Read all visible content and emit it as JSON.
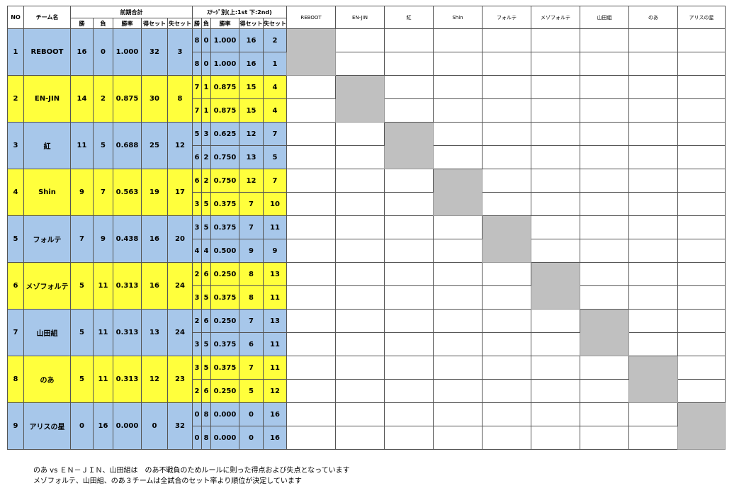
{
  "headers": {
    "no": "NO",
    "team": "チーム名",
    "total": "前期合計",
    "stage": "ｽﾃｰｼﾞ別(上:1st 下:2nd)",
    "win": "勝",
    "loss": "負",
    "rate": "勝率",
    "sets_won": "得セット",
    "sets_lost": "失セット"
  },
  "teams": [
    "REBOOT",
    "EN-JIN",
    "紅",
    "Shin",
    "フォルテ",
    "メゾフォルテ",
    "山田組",
    "のあ",
    "アリスの星"
  ],
  "colors": {
    "blue_row": "#a7c7ea",
    "yellow_row": "#ffff3c",
    "self_block": "#c0c0c0",
    "win_cell": "#d7f0d2",
    "loss_cell": "#f7c9c9"
  },
  "rows": [
    {
      "no": "1",
      "team": "REBOOT",
      "win": "16",
      "loss": "0",
      "rate": "1.000",
      "sw": "32",
      "sl": "3",
      "color": "blue",
      "s1": {
        "w": "8",
        "l": "0",
        "r": "1.000",
        "sw": "16",
        "sl": "2"
      },
      "s2": {
        "w": "8",
        "l": "0",
        "r": "1.000",
        "sw": "16",
        "sl": "1"
      }
    },
    {
      "no": "2",
      "team": "EN-JIN",
      "win": "14",
      "loss": "2",
      "rate": "0.875",
      "sw": "30",
      "sl": "8",
      "color": "yellow",
      "s1": {
        "w": "7",
        "l": "1",
        "r": "0.875",
        "sw": "15",
        "sl": "4"
      },
      "s2": {
        "w": "7",
        "l": "1",
        "r": "0.875",
        "sw": "15",
        "sl": "4"
      }
    },
    {
      "no": "3",
      "team": "紅",
      "win": "11",
      "loss": "5",
      "rate": "0.688",
      "sw": "25",
      "sl": "12",
      "color": "blue",
      "s1": {
        "w": "5",
        "l": "3",
        "r": "0.625",
        "sw": "12",
        "sl": "7"
      },
      "s2": {
        "w": "6",
        "l": "2",
        "r": "0.750",
        "sw": "13",
        "sl": "5"
      }
    },
    {
      "no": "4",
      "team": "Shin",
      "win": "9",
      "loss": "7",
      "rate": "0.563",
      "sw": "19",
      "sl": "17",
      "color": "yellow",
      "s1": {
        "w": "6",
        "l": "2",
        "r": "0.750",
        "sw": "12",
        "sl": "7"
      },
      "s2": {
        "w": "3",
        "l": "5",
        "r": "0.375",
        "sw": "7",
        "sl": "10"
      }
    },
    {
      "no": "5",
      "team": "フォルテ",
      "win": "7",
      "loss": "9",
      "rate": "0.438",
      "sw": "16",
      "sl": "20",
      "color": "blue",
      "s1": {
        "w": "3",
        "l": "5",
        "r": "0.375",
        "sw": "7",
        "sl": "11"
      },
      "s2": {
        "w": "4",
        "l": "4",
        "r": "0.500",
        "sw": "9",
        "sl": "9"
      }
    },
    {
      "no": "6",
      "team": "メゾフォルテ",
      "win": "5",
      "loss": "11",
      "rate": "0.313",
      "sw": "16",
      "sl": "24",
      "color": "yellow",
      "s1": {
        "w": "2",
        "l": "6",
        "r": "0.250",
        "sw": "8",
        "sl": "13"
      },
      "s2": {
        "w": "3",
        "l": "5",
        "r": "0.375",
        "sw": "8",
        "sl": "11"
      }
    },
    {
      "no": "7",
      "team": "山田組",
      "win": "5",
      "loss": "11",
      "rate": "0.313",
      "sw": "13",
      "sl": "24",
      "color": "blue",
      "s1": {
        "w": "2",
        "l": "6",
        "r": "0.250",
        "sw": "7",
        "sl": "13"
      },
      "s2": {
        "w": "3",
        "l": "5",
        "r": "0.375",
        "sw": "6",
        "sl": "11"
      }
    },
    {
      "no": "8",
      "team": "のあ",
      "win": "5",
      "loss": "11",
      "rate": "0.313",
      "sw": "12",
      "sl": "23",
      "color": "yellow",
      "s1": {
        "w": "3",
        "l": "5",
        "r": "0.375",
        "sw": "7",
        "sl": "11"
      },
      "s2": {
        "w": "2",
        "l": "6",
        "r": "0.250",
        "sw": "5",
        "sl": "12"
      }
    },
    {
      "no": "9",
      "team": "アリスの星",
      "win": "0",
      "loss": "16",
      "rate": "0.000",
      "sw": "0",
      "sl": "32",
      "color": "blue",
      "s1": {
        "w": "0",
        "l": "8",
        "r": "0.000",
        "sw": "0",
        "sl": "16"
      },
      "s2": {
        "w": "0",
        "l": "8",
        "r": "0.000",
        "sw": "0",
        "sl": "16"
      }
    }
  ],
  "notes": [
    "のあ vs ＥＮ－ＪＩＮ、山田組は　のあ不戦負のためルールに則った得点および失点となっています",
    "メゾフォルテ、山田組、のあ３チームは全試合のセット率より順位が決定しています"
  ]
}
